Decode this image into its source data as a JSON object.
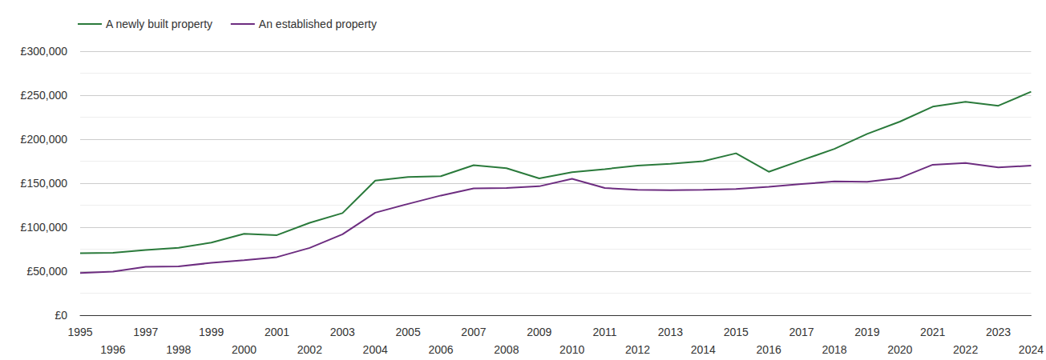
{
  "chart_data": {
    "type": "line",
    "categories": [
      "1995",
      "1996",
      "1997",
      "1998",
      "1999",
      "2000",
      "2001",
      "2002",
      "2003",
      "2004",
      "2005",
      "2006",
      "2007",
      "2008",
      "2009",
      "2010",
      "2011",
      "2012",
      "2013",
      "2014",
      "2015",
      "2016",
      "2017",
      "2018",
      "2019",
      "2020",
      "2021",
      "2022",
      "2023",
      "2024"
    ],
    "series": [
      {
        "name": "A newly built property",
        "color": "#2a7a3b",
        "values": [
          70500,
          71000,
          74000,
          76500,
          82500,
          92500,
          91000,
          105000,
          116000,
          153000,
          157000,
          158000,
          170500,
          167000,
          155500,
          162500,
          166000,
          170000,
          172000,
          175000,
          184000,
          163000,
          176000,
          189000,
          206000,
          220000,
          237000,
          242500,
          238000,
          254000
        ]
      },
      {
        "name": "An established property",
        "color": "#6d2d80",
        "values": [
          48000,
          49500,
          55000,
          55500,
          59500,
          62500,
          66000,
          76500,
          92000,
          116500,
          126500,
          136000,
          144000,
          144500,
          146500,
          155000,
          144500,
          142500,
          142000,
          142500,
          143500,
          146000,
          149000,
          152000,
          151500,
          156000,
          171000,
          173000,
          168000,
          170000
        ]
      }
    ],
    "ylim": [
      0,
      300000
    ],
    "yticks": [
      {
        "value": 0,
        "label": "£0"
      },
      {
        "value": 50000,
        "label": "£50,000"
      },
      {
        "value": 100000,
        "label": "£100,000"
      },
      {
        "value": 150000,
        "label": "£150,000"
      },
      {
        "value": 200000,
        "label": "£200,000"
      },
      {
        "value": 250000,
        "label": "£250,000"
      },
      {
        "value": 300000,
        "label": "£300,000"
      }
    ],
    "grid": true,
    "legend": "top-left"
  }
}
